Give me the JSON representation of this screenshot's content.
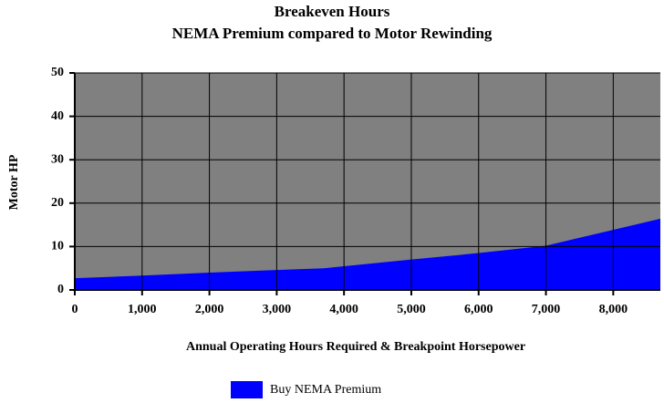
{
  "chart_data": {
    "type": "area",
    "title": "Breakeven Hours",
    "subtitle": "NEMA Premium compared to Motor Rewinding",
    "x_label": "Annual Operating Hours Required & Breakpoint Horsepower",
    "y_label": "Motor HP",
    "plot_background": "#808080",
    "grid": true,
    "xlim": [
      0,
      8700
    ],
    "ylim": [
      0,
      50
    ],
    "xticks": [
      0,
      {
        "value": 1000,
        "label": "1,000"
      },
      {
        "value": 2000,
        "label": "2,000"
      },
      {
        "value": 3000,
        "label": "3,000"
      },
      {
        "value": 4000,
        "label": "4,000"
      },
      {
        "value": 5000,
        "label": "5,000"
      },
      {
        "value": 6000,
        "label": "6,000"
      },
      {
        "value": 7000,
        "label": "7,000"
      },
      {
        "value": 8000,
        "label": "8,000"
      }
    ],
    "yticks": [
      0,
      10,
      20,
      30,
      40,
      50
    ],
    "legend": "bottom",
    "series": [
      {
        "name": "Buy NEMA Premium",
        "color": "#0000ff",
        "x": [
          0,
          1000,
          2000,
          3000,
          3700,
          5000,
          6000,
          7000,
          8700
        ],
        "values": [
          2.7,
          3.3,
          4,
          4.6,
          5,
          7,
          8.5,
          10.2,
          16.4
        ]
      }
    ]
  }
}
